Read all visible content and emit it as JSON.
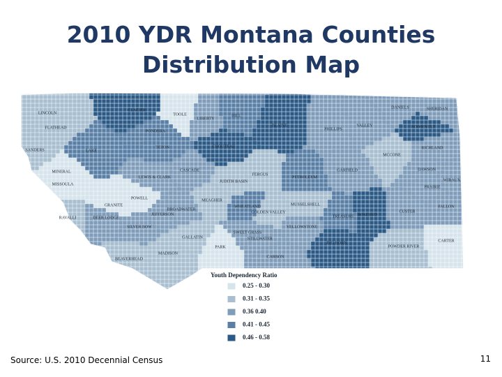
{
  "title": "2010 YDR Montana Counties Distribution Map",
  "map": {
    "counties": [
      {
        "name": "Lincoln",
        "color": "#a9bfd1"
      },
      {
        "name": "Flathead",
        "color": "#a9bfd1"
      },
      {
        "name": "Glacier",
        "color": "#2c5a87"
      },
      {
        "name": "Toole",
        "color": "#d6e4ec"
      },
      {
        "name": "Liberty",
        "color": "#7f9dbb"
      },
      {
        "name": "Hill",
        "color": "#5a7fa6"
      },
      {
        "name": "Blaine",
        "color": "#2c5a87"
      },
      {
        "name": "Phillips",
        "color": "#7f9dbb"
      },
      {
        "name": "Valley",
        "color": "#7f9dbb"
      },
      {
        "name": "Daniels",
        "color": "#7f9dbb"
      },
      {
        "name": "Sheridan",
        "color": "#7f9dbb"
      },
      {
        "name": "Roosevelt",
        "color": "#2c5a87"
      },
      {
        "name": "Pondera",
        "color": "#5a7fa6"
      },
      {
        "name": "Teton",
        "color": "#5a7fa6"
      },
      {
        "name": "Chouteau",
        "color": "#2c5a87"
      },
      {
        "name": "Sanders",
        "color": "#a9bfd1"
      },
      {
        "name": "Lake",
        "color": "#5a7fa6"
      },
      {
        "name": "Richland",
        "color": "#7f9dbb"
      },
      {
        "name": "McCone",
        "color": "#a9bfd1"
      },
      {
        "name": "Mineral",
        "color": "#d6e4ec"
      },
      {
        "name": "Missoula",
        "color": "#d6e4ec"
      },
      {
        "name": "Cascade",
        "color": "#7f9dbb"
      },
      {
        "name": "Lewis & Clark",
        "color": "#7f9dbb"
      },
      {
        "name": "Fergus",
        "color": "#a9bfd1"
      },
      {
        "name": "Garfield",
        "color": "#7f9dbb"
      },
      {
        "name": "Dawson",
        "color": "#7f9dbb"
      },
      {
        "name": "Judith Basin",
        "color": "#a9bfd1"
      },
      {
        "name": "Petroleum",
        "color": "#5a7fa6"
      },
      {
        "name": "Wibaux",
        "color": "#7f9dbb"
      },
      {
        "name": "Prairie",
        "color": "#7f9dbb"
      },
      {
        "name": "Powell",
        "color": "#d6e4ec"
      },
      {
        "name": "Granite",
        "color": "#d6e4ec"
      },
      {
        "name": "Meagher",
        "color": "#a9bfd1"
      },
      {
        "name": "Wheatland",
        "color": "#5a7fa6"
      },
      {
        "name": "Golden Valley",
        "color": "#a9bfd1"
      },
      {
        "name": "Musselshell",
        "color": "#a9bfd1"
      },
      {
        "name": "Treasure",
        "color": "#5a7fa6"
      },
      {
        "name": "Rosebud",
        "color": "#2c5a87"
      },
      {
        "name": "Custer",
        "color": "#7f9dbb"
      },
      {
        "name": "Fallon",
        "color": "#7f9dbb"
      },
      {
        "name": "Ravalli",
        "color": "#a9bfd1"
      },
      {
        "name": "Broadwater",
        "color": "#7f9dbb"
      },
      {
        "name": "Jefferson",
        "color": "#7f9dbb"
      },
      {
        "name": "Deer Lodge",
        "color": "#7f9dbb"
      },
      {
        "name": "Silver Bow",
        "color": "#7f9dbb"
      },
      {
        "name": "Gallatin",
        "color": "#a9bfd1"
      },
      {
        "name": "Sweet Grass",
        "color": "#7f9dbb"
      },
      {
        "name": "Stillwater",
        "color": "#7f9dbb"
      },
      {
        "name": "Yellowstone",
        "color": "#7f9dbb"
      },
      {
        "name": "Park",
        "color": "#d6e4ec"
      },
      {
        "name": "Big Horn",
        "color": "#2c5a87"
      },
      {
        "name": "Powder River",
        "color": "#a9bfd1"
      },
      {
        "name": "Carter",
        "color": "#d6e4ec"
      },
      {
        "name": "Beaverhead",
        "color": "#a9bfd1"
      },
      {
        "name": "Madison",
        "color": "#a9bfd1"
      },
      {
        "name": "Carbon",
        "color": "#7f9dbb"
      }
    ],
    "legend": {
      "title": "Youth Dependency Ratio",
      "entries": [
        {
          "label": "0.25 - 0.30",
          "color": "#d6e4ec"
        },
        {
          "label": "0.31 - 0.35",
          "color": "#a9bfd1"
        },
        {
          "label": "0.36 0.40",
          "color": "#7f9dbb"
        },
        {
          "label": "0.41 - 0.45",
          "color": "#5a7fa6"
        },
        {
          "label": "0.46 - 0.58",
          "color": "#2c5a87"
        }
      ]
    }
  },
  "footer": {
    "source": "Source: U.S. 2010 Decennial Census",
    "page": "11"
  }
}
